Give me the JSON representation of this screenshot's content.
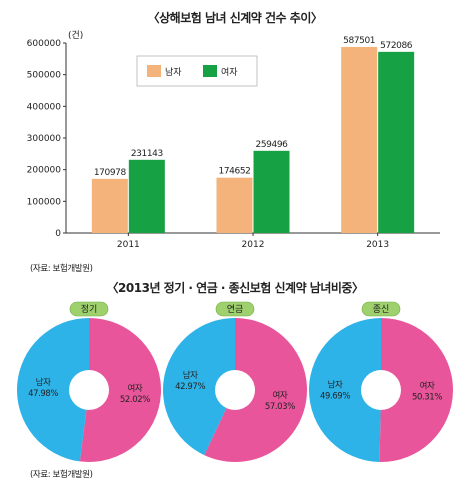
{
  "bar_chart_title": "〈상해보험 남녀 신계약 건수 추이〉",
  "pie_section_title": "〈2013년 정기 · 연금 · 종신보험 신계약 남녀비중〉",
  "source_1": "(자료: 보험개발원)",
  "source_2": "(자료: 보험개발원)",
  "colors": {
    "male_bar": "#f3b37a",
    "female_bar": "#17a145",
    "male_pie": "#2eb3e8",
    "female_pie": "#e8559a",
    "pill": "#9ed06e"
  },
  "chart_data": [
    {
      "type": "bar",
      "title": "〈상해보험 남녀 신계약 건수 추이〉",
      "ylabel": "(건)",
      "categories": [
        "2011",
        "2012",
        "2013"
      ],
      "ylim": [
        0,
        600000
      ],
      "yticks": [
        0,
        100000,
        200000,
        300000,
        400000,
        500000,
        600000
      ],
      "legend": "top-left",
      "series": [
        {
          "name": "남자",
          "values": [
            170978,
            174652,
            587501
          ]
        },
        {
          "name": "여자",
          "values": [
            231143,
            259496,
            572086
          ]
        }
      ]
    },
    {
      "type": "pie",
      "title": "정기",
      "slices": [
        {
          "name": "남자",
          "value": 47.98,
          "label": "47.98%"
        },
        {
          "name": "여자",
          "value": 52.02,
          "label": "52.02%"
        }
      ]
    },
    {
      "type": "pie",
      "title": "연금",
      "slices": [
        {
          "name": "남자",
          "value": 42.97,
          "label": "42.97%"
        },
        {
          "name": "여자",
          "value": 57.03,
          "label": "57.03%"
        }
      ]
    },
    {
      "type": "pie",
      "title": "종신",
      "slices": [
        {
          "name": "남자",
          "value": 49.69,
          "label": "49.69%"
        },
        {
          "name": "여자",
          "value": 50.31,
          "label": "50.31%"
        }
      ]
    }
  ]
}
